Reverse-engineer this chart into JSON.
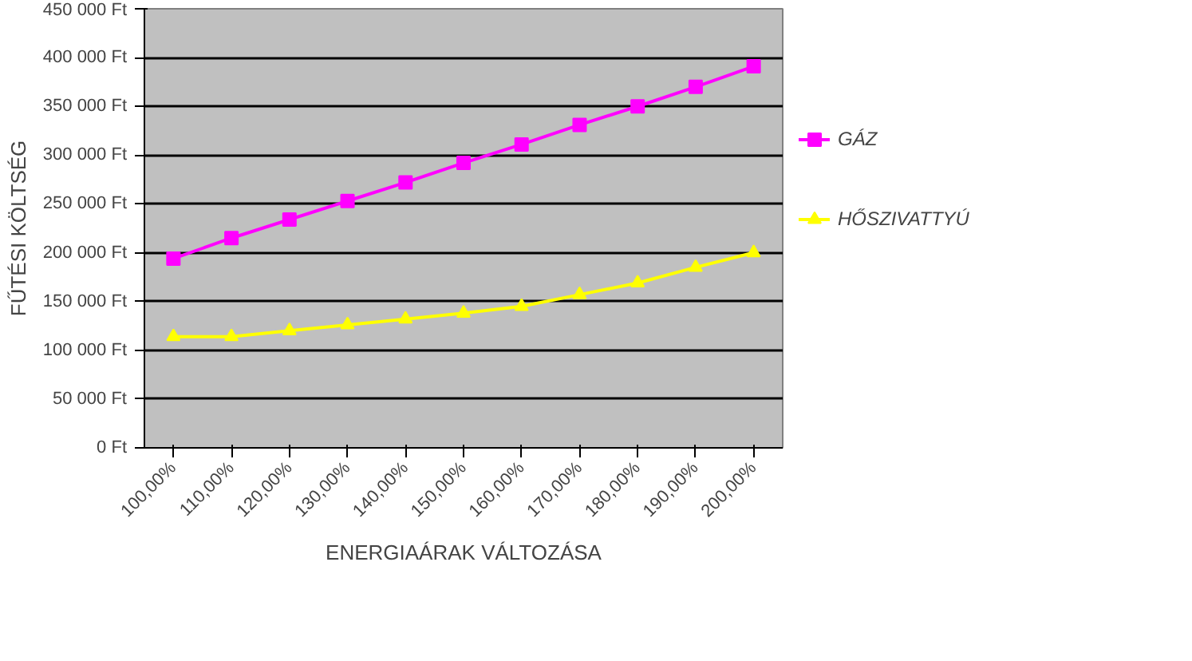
{
  "chart_data": {
    "type": "line",
    "xlabel": "ENERGIAÁRAK VÁLTOZÁSA",
    "ylabel": "FŰTÉSI KÖLTSÉG",
    "categories": [
      "100,00%",
      "110,00%",
      "120,00%",
      "130,00%",
      "140,00%",
      "150,00%",
      "160,00%",
      "170,00%",
      "180,00%",
      "190,00%",
      "200,00%"
    ],
    "series": [
      {
        "name": "GÁZ",
        "color": "#ff00ff",
        "marker": "square",
        "values": [
          194000,
          215000,
          234000,
          253000,
          272000,
          292000,
          311000,
          331000,
          350000,
          370000,
          391000
        ]
      },
      {
        "name": "HŐSZIVATTYÚ",
        "color": "#ffff00",
        "marker": "triangle",
        "values": [
          114000,
          114000,
          120000,
          126000,
          132000,
          138000,
          145000,
          157000,
          169000,
          185000,
          200000
        ]
      }
    ],
    "ylim": [
      0,
      450000
    ],
    "yticks": [
      {
        "value": 0,
        "label": "0 Ft"
      },
      {
        "value": 50000,
        "label": "50 000 Ft"
      },
      {
        "value": 100000,
        "label": "100 000 Ft"
      },
      {
        "value": 150000,
        "label": "150 000 Ft"
      },
      {
        "value": 200000,
        "label": "200 000 Ft"
      },
      {
        "value": 250000,
        "label": "250 000 Ft"
      },
      {
        "value": 300000,
        "label": "300 000 Ft"
      },
      {
        "value": 350000,
        "label": "350 000 Ft"
      },
      {
        "value": 400000,
        "label": "400 000 Ft"
      },
      {
        "value": 450000,
        "label": "450 000 Ft"
      }
    ],
    "grid": "y",
    "legend": "right"
  }
}
